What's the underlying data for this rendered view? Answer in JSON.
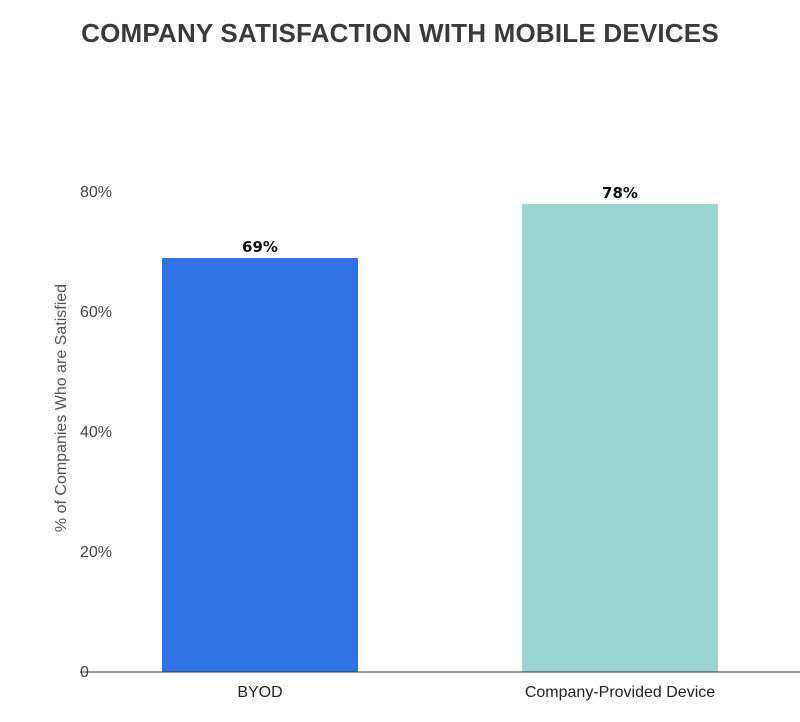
{
  "chart_data": {
    "type": "bar",
    "title": "COMPANY SATISFACTION WITH MOBILE DEVICES",
    "xlabel": "",
    "ylabel": "% of Companies Who are Satisfied",
    "categories": [
      "BYOD",
      "Company-Provided Device"
    ],
    "values": [
      69,
      78
    ],
    "value_labels": [
      "69%",
      "78%"
    ],
    "bar_colors": [
      "#3073e6",
      "#9ad5d1"
    ],
    "ylim": [
      0,
      80
    ],
    "yticks": [
      0,
      20,
      40,
      60,
      80
    ],
    "ytick_labels": [
      "0",
      "20%",
      "40%",
      "60%",
      "80%"
    ],
    "grid": false,
    "legend": "none"
  }
}
